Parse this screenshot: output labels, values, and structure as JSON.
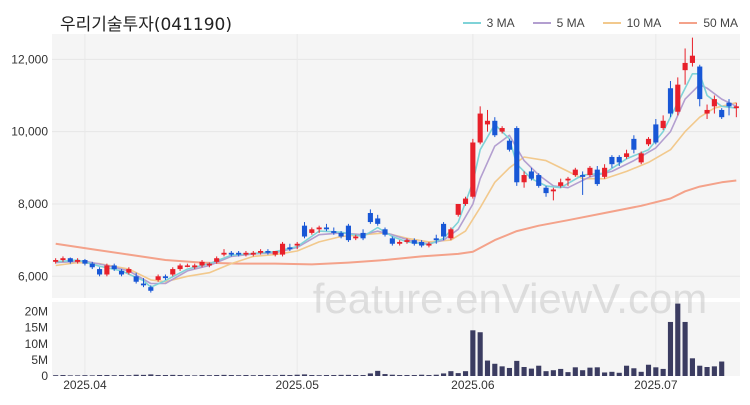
{
  "chart_data": {
    "type": "candlestick",
    "title": "우리기술투자(041190)",
    "watermark": "feature.enViewV.com",
    "legend_placement": "top-right",
    "colors": {
      "up": "#e8202a",
      "down": "#1857d6",
      "ma3": "#7fd3d8",
      "ma5": "#b39fd0",
      "ma10": "#f2c98d",
      "ma50": "#f4a28a",
      "volume": "#3b3c61",
      "plot_bg": "#f5f5f5"
    },
    "price_axis": {
      "ylim": [
        5400,
        12700
      ],
      "ticks": [
        6000,
        8000,
        10000,
        12000
      ],
      "tick_labels": [
        "6,000",
        "8,000",
        "10,000",
        "12,000"
      ]
    },
    "volume_axis": {
      "ylim": [
        0,
        23000000
      ],
      "ticks": [
        0,
        5000000,
        10000000,
        15000000,
        20000000
      ],
      "tick_labels": [
        "0",
        "5M",
        "10M",
        "15M",
        "20M"
      ]
    },
    "x_labels": [
      {
        "index": 4,
        "label": "2025.04"
      },
      {
        "index": 33,
        "label": "2025.05"
      },
      {
        "index": 57,
        "label": "2025.06"
      },
      {
        "index": 82,
        "label": "2025.07"
      }
    ],
    "series": [
      {
        "name": "3 MA",
        "key": "ma3"
      },
      {
        "name": "5 MA",
        "key": "ma5"
      },
      {
        "name": "10 MA",
        "key": "ma10"
      },
      {
        "name": "50 MA",
        "key": "ma50"
      }
    ],
    "candles": [
      [
        6400,
        6500,
        6350,
        6450
      ],
      [
        6450,
        6550,
        6400,
        6500
      ],
      [
        6500,
        6520,
        6350,
        6400
      ],
      [
        6400,
        6500,
        6350,
        6450
      ],
      [
        6450,
        6480,
        6300,
        6350
      ],
      [
        6350,
        6400,
        6200,
        6250
      ],
      [
        6200,
        6250,
        6000,
        6050
      ],
      [
        6050,
        6350,
        6000,
        6300
      ],
      [
        6300,
        6350,
        6150,
        6200
      ],
      [
        6150,
        6200,
        6000,
        6050
      ],
      [
        6100,
        6250,
        6050,
        6200
      ],
      [
        6000,
        6100,
        5800,
        5850
      ],
      [
        5800,
        5950,
        5700,
        5750
      ],
      [
        5700,
        5750,
        5550,
        5600
      ],
      [
        5900,
        6050,
        5850,
        6000
      ],
      [
        6000,
        6050,
        5900,
        5950
      ],
      [
        6050,
        6250,
        6000,
        6200
      ],
      [
        6200,
        6350,
        6150,
        6300
      ],
      [
        6300,
        6350,
        6250,
        6300
      ],
      [
        6250,
        6350,
        6200,
        6300
      ],
      [
        6300,
        6450,
        6250,
        6400
      ],
      [
        6300,
        6380,
        6250,
        6350
      ],
      [
        6400,
        6550,
        6350,
        6500
      ],
      [
        6600,
        6750,
        6550,
        6650
      ],
      [
        6650,
        6700,
        6550,
        6600
      ],
      [
        6650,
        6700,
        6550,
        6600
      ],
      [
        6600,
        6700,
        6550,
        6650
      ],
      [
        6600,
        6700,
        6550,
        6650
      ],
      [
        6650,
        6750,
        6600,
        6700
      ],
      [
        6700,
        6750,
        6600,
        6650
      ],
      [
        6600,
        6700,
        6550,
        6700
      ],
      [
        6600,
        6950,
        6550,
        6900
      ],
      [
        6800,
        6900,
        6700,
        6750
      ],
      [
        6850,
        6950,
        6750,
        6900
      ],
      [
        7400,
        7500,
        7050,
        7100
      ],
      [
        7200,
        7350,
        7150,
        7300
      ],
      [
        7300,
        7400,
        7200,
        7350
      ],
      [
        7350,
        7450,
        7250,
        7300
      ],
      [
        7250,
        7350,
        7150,
        7200
      ],
      [
        7200,
        7250,
        7050,
        7100
      ],
      [
        7400,
        7450,
        6950,
        7000
      ],
      [
        7050,
        7150,
        7000,
        7100
      ],
      [
        7200,
        7300,
        7000,
        7050
      ],
      [
        7750,
        7850,
        7450,
        7500
      ],
      [
        7600,
        7700,
        7400,
        7450
      ],
      [
        7300,
        7350,
        7100,
        7150
      ],
      [
        7050,
        7100,
        6850,
        6900
      ],
      [
        6900,
        7000,
        6850,
        6950
      ],
      [
        6950,
        7050,
        6900,
        7000
      ],
      [
        7000,
        7050,
        6850,
        6900
      ],
      [
        6950,
        7000,
        6800,
        6850
      ],
      [
        6850,
        6950,
        6800,
        6900
      ],
      [
        7050,
        7150,
        6900,
        7000
      ],
      [
        7450,
        7500,
        7000,
        7100
      ],
      [
        7050,
        7350,
        7000,
        7300
      ],
      [
        7700,
        8000,
        7650,
        8000
      ],
      [
        8000,
        8200,
        7950,
        8150
      ],
      [
        8200,
        9800,
        8150,
        9700
      ],
      [
        9700,
        10700,
        9650,
        10500
      ],
      [
        10200,
        10600,
        10000,
        10300
      ],
      [
        10300,
        10400,
        9850,
        9900
      ],
      [
        10000,
        10150,
        9950,
        10100
      ],
      [
        9750,
        9800,
        9450,
        9500
      ],
      [
        10100,
        10150,
        8500,
        8600
      ],
      [
        8600,
        8900,
        8450,
        8800
      ],
      [
        8900,
        9000,
        8650,
        8700
      ],
      [
        8800,
        8850,
        8450,
        8500
      ],
      [
        8450,
        8500,
        8200,
        8300
      ],
      [
        8350,
        8450,
        8100,
        8400
      ],
      [
        8500,
        8700,
        8450,
        8600
      ],
      [
        8650,
        8750,
        8500,
        8700
      ],
      [
        8800,
        9000,
        8750,
        8950
      ],
      [
        8800,
        8900,
        8250,
        8750
      ],
      [
        8800,
        9050,
        8750,
        9000
      ],
      [
        8950,
        9050,
        8500,
        8550
      ],
      [
        8750,
        9100,
        8700,
        9000
      ],
      [
        9300,
        9350,
        9000,
        9100
      ],
      [
        9300,
        9350,
        9050,
        9150
      ],
      [
        9300,
        9500,
        9250,
        9400
      ],
      [
        9800,
        9900,
        9400,
        9500
      ],
      [
        9150,
        9450,
        9100,
        9400
      ],
      [
        9650,
        9850,
        9600,
        9800
      ],
      [
        10200,
        10350,
        9650,
        9700
      ],
      [
        10100,
        10450,
        10050,
        10300
      ],
      [
        11200,
        11400,
        10400,
        10500
      ],
      [
        10550,
        11500,
        10450,
        11300
      ],
      [
        11700,
        12300,
        11300,
        11900
      ],
      [
        11900,
        12600,
        11800,
        12100
      ],
      [
        11800,
        11850,
        10700,
        10900
      ],
      [
        10500,
        10750,
        10350,
        10600
      ],
      [
        10700,
        11000,
        10500,
        10900
      ],
      [
        10600,
        10650,
        10350,
        10400
      ],
      [
        10800,
        10900,
        10450,
        10700
      ],
      [
        10650,
        10800,
        10400,
        10700
      ]
    ],
    "volume": [
      0.25,
      0.3,
      0.2,
      0.2,
      0.25,
      0.2,
      0.3,
      0.3,
      0.25,
      0.3,
      0.25,
      0.4,
      0.35,
      0.5,
      0.3,
      0.3,
      0.35,
      0.3,
      0.25,
      0.2,
      0.3,
      0.25,
      0.3,
      0.35,
      0.3,
      0.25,
      0.3,
      0.25,
      0.3,
      0.3,
      0.25,
      0.35,
      0.3,
      0.4,
      0.5,
      0.3,
      0.25,
      0.3,
      0.3,
      0.35,
      0.35,
      0.3,
      0.3,
      0.8,
      1.6,
      0.6,
      0.4,
      0.3,
      0.3,
      0.3,
      0.4,
      0.3,
      0.4,
      0.8,
      1.5,
      0.9,
      1.5,
      14.2,
      13.6,
      4.8,
      3.8,
      3.0,
      2.5,
      4.7,
      2.8,
      2.3,
      3.2,
      1.5,
      1.8,
      2.2,
      1.2,
      2.7,
      1.8,
      2.6,
      2.7,
      1.1,
      1.3,
      1.0,
      3.2,
      2.4,
      1.3,
      3.5,
      2.7,
      2.2,
      16.8,
      22.5,
      16.8,
      5.5,
      3.2,
      2.8,
      3.0,
      4.5
    ],
    "ma3": [
      [
        0,
        6400
      ],
      [
        3,
        6450
      ],
      [
        6,
        6280
      ],
      [
        9,
        6150
      ],
      [
        12,
        5880
      ],
      [
        13,
        5700
      ],
      [
        15,
        5880
      ],
      [
        18,
        6200
      ],
      [
        21,
        6350
      ],
      [
        24,
        6580
      ],
      [
        27,
        6630
      ],
      [
        30,
        6680
      ],
      [
        33,
        6820
      ],
      [
        36,
        7250
      ],
      [
        39,
        7220
      ],
      [
        42,
        7100
      ],
      [
        44,
        7350
      ],
      [
        46,
        7100
      ],
      [
        48,
        6950
      ],
      [
        51,
        6880
      ],
      [
        53,
        7050
      ],
      [
        55,
        7500
      ],
      [
        57,
        8600
      ],
      [
        58,
        9500
      ],
      [
        60,
        10200
      ],
      [
        62,
        9800
      ],
      [
        63,
        9100
      ],
      [
        65,
        8700
      ],
      [
        67,
        8500
      ],
      [
        69,
        8450
      ],
      [
        72,
        8800
      ],
      [
        75,
        8850
      ],
      [
        78,
        9250
      ],
      [
        81,
        9500
      ],
      [
        83,
        10000
      ],
      [
        85,
        10800
      ],
      [
        87,
        11600
      ],
      [
        88,
        11600
      ],
      [
        89,
        11000
      ],
      [
        91,
        10700
      ],
      [
        93,
        10650
      ]
    ],
    "ma5": [
      [
        0,
        6380
      ],
      [
        4,
        6420
      ],
      [
        7,
        6300
      ],
      [
        10,
        6150
      ],
      [
        13,
        5800
      ],
      [
        15,
        5800
      ],
      [
        18,
        6150
      ],
      [
        21,
        6300
      ],
      [
        24,
        6550
      ],
      [
        27,
        6620
      ],
      [
        30,
        6650
      ],
      [
        33,
        6800
      ],
      [
        36,
        7150
      ],
      [
        39,
        7200
      ],
      [
        42,
        7150
      ],
      [
        44,
        7250
      ],
      [
        46,
        7150
      ],
      [
        49,
        6950
      ],
      [
        51,
        6900
      ],
      [
        53,
        7000
      ],
      [
        55,
        7300
      ],
      [
        57,
        8000
      ],
      [
        58,
        8700
      ],
      [
        60,
        9600
      ],
      [
        62,
        9900
      ],
      [
        64,
        9200
      ],
      [
        66,
        8800
      ],
      [
        68,
        8500
      ],
      [
        70,
        8450
      ],
      [
        73,
        8750
      ],
      [
        76,
        8900
      ],
      [
        79,
        9200
      ],
      [
        82,
        9550
      ],
      [
        84,
        10000
      ],
      [
        86,
        10900
      ],
      [
        88,
        11300
      ],
      [
        89,
        11200
      ],
      [
        91,
        10900
      ],
      [
        93,
        10700
      ]
    ],
    "ma10": [
      [
        0,
        6300
      ],
      [
        3,
        6380
      ],
      [
        6,
        6350
      ],
      [
        10,
        6200
      ],
      [
        13,
        5900
      ],
      [
        15,
        5850
      ],
      [
        18,
        6000
      ],
      [
        21,
        6100
      ],
      [
        24,
        6350
      ],
      [
        27,
        6550
      ],
      [
        30,
        6600
      ],
      [
        33,
        6700
      ],
      [
        36,
        6950
      ],
      [
        39,
        7100
      ],
      [
        42,
        7150
      ],
      [
        45,
        7200
      ],
      [
        48,
        7050
      ],
      [
        51,
        6950
      ],
      [
        54,
        7000
      ],
      [
        56,
        7250
      ],
      [
        58,
        7900
      ],
      [
        60,
        8600
      ],
      [
        62,
        9000
      ],
      [
        64,
        9300
      ],
      [
        67,
        9200
      ],
      [
        70,
        8900
      ],
      [
        72,
        8700
      ],
      [
        75,
        8700
      ],
      [
        78,
        8900
      ],
      [
        81,
        9150
      ],
      [
        84,
        9500
      ],
      [
        86,
        10000
      ],
      [
        88,
        10400
      ],
      [
        90,
        10650
      ],
      [
        93,
        10800
      ]
    ],
    "ma50": [
      [
        0,
        6900
      ],
      [
        5,
        6750
      ],
      [
        10,
        6600
      ],
      [
        15,
        6450
      ],
      [
        20,
        6380
      ],
      [
        25,
        6350
      ],
      [
        30,
        6350
      ],
      [
        35,
        6330
      ],
      [
        40,
        6380
      ],
      [
        45,
        6450
      ],
      [
        50,
        6550
      ],
      [
        55,
        6620
      ],
      [
        57,
        6680
      ],
      [
        60,
        7000
      ],
      [
        63,
        7250
      ],
      [
        66,
        7400
      ],
      [
        70,
        7550
      ],
      [
        75,
        7750
      ],
      [
        80,
        7950
      ],
      [
        84,
        8150
      ],
      [
        86,
        8350
      ],
      [
        88,
        8480
      ],
      [
        91,
        8600
      ],
      [
        93,
        8650
      ]
    ]
  }
}
